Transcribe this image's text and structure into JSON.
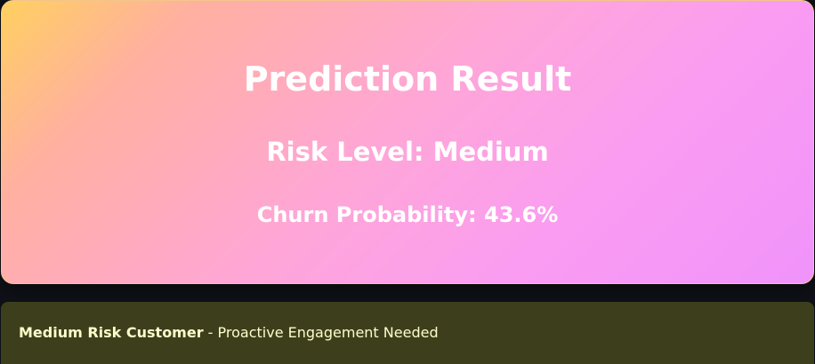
{
  "prediction_card": {
    "title": "Prediction Result",
    "risk_level": "Risk Level: Medium",
    "churn_probability": "Churn Probability: 43.6%",
    "colors": {
      "gradient_start": "#ffd060",
      "gradient_mid": "#ffa6d8",
      "gradient_end": "#f093fb",
      "text": "#ffffff"
    }
  },
  "alert": {
    "headline": "Medium Risk Customer",
    "message": " - Proactive Engagement Needed",
    "colors": {
      "background": "#3d3f1c",
      "text": "#fdfdc9"
    }
  }
}
